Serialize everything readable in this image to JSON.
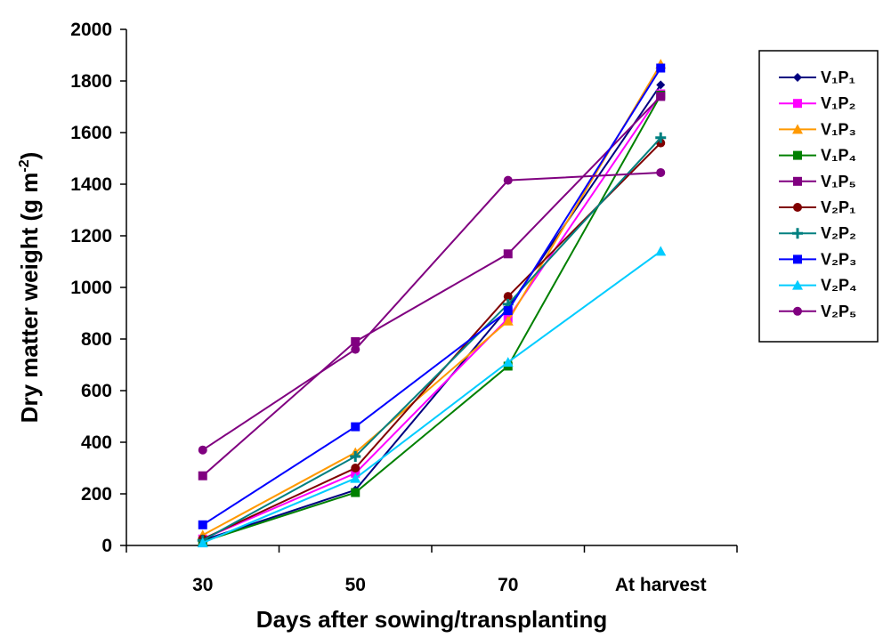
{
  "chart_data": {
    "type": "line",
    "title": "",
    "xlabel": "Days after sowing/transplanting",
    "ylabel": "Dry matter weight (g m",
    "ylabel_superscript": "-2",
    "ylabel_suffix": ")",
    "categories": [
      "30",
      "50",
      "70",
      "At harvest"
    ],
    "ylim": [
      0,
      2000
    ],
    "yticks": [
      "0",
      "200",
      "400",
      "600",
      "800",
      "1000",
      "1200",
      "1400",
      "1600",
      "1800",
      "2000"
    ],
    "grid": false,
    "legend_position": "right",
    "series": [
      {
        "name": "V₁P₁",
        "color": "#000080",
        "marker": "diamond",
        "values": [
          20,
          215,
          920,
          1785
        ]
      },
      {
        "name": "V₁P₂",
        "color": "#FF00FF",
        "marker": "square",
        "values": [
          25,
          280,
          880,
          1750
        ]
      },
      {
        "name": "V₁P₃",
        "color": "#FF9900",
        "marker": "triangle",
        "values": [
          40,
          360,
          870,
          1865
        ]
      },
      {
        "name": "V₁P₄",
        "color": "#008000",
        "marker": "square",
        "values": [
          15,
          205,
          695,
          1745
        ]
      },
      {
        "name": "V₁P₅",
        "color": "#800080",
        "marker": "square",
        "values": [
          270,
          790,
          1130,
          1740
        ]
      },
      {
        "name": "V₂P₁",
        "color": "#800000",
        "marker": "circle",
        "values": [
          25,
          300,
          965,
          1560
        ]
      },
      {
        "name": "V₂P₂",
        "color": "#008080",
        "marker": "plus",
        "values": [
          20,
          345,
          935,
          1580
        ]
      },
      {
        "name": "V₂P₃",
        "color": "#0000FF",
        "marker": "square",
        "values": [
          80,
          460,
          910,
          1850
        ]
      },
      {
        "name": "V₂P₄",
        "color": "#00CCFF",
        "marker": "triangle",
        "values": [
          10,
          260,
          710,
          1140
        ]
      },
      {
        "name": "V₂P₅",
        "color": "#800080",
        "marker": "circle",
        "values": [
          370,
          760,
          1415,
          1445
        ]
      }
    ]
  }
}
